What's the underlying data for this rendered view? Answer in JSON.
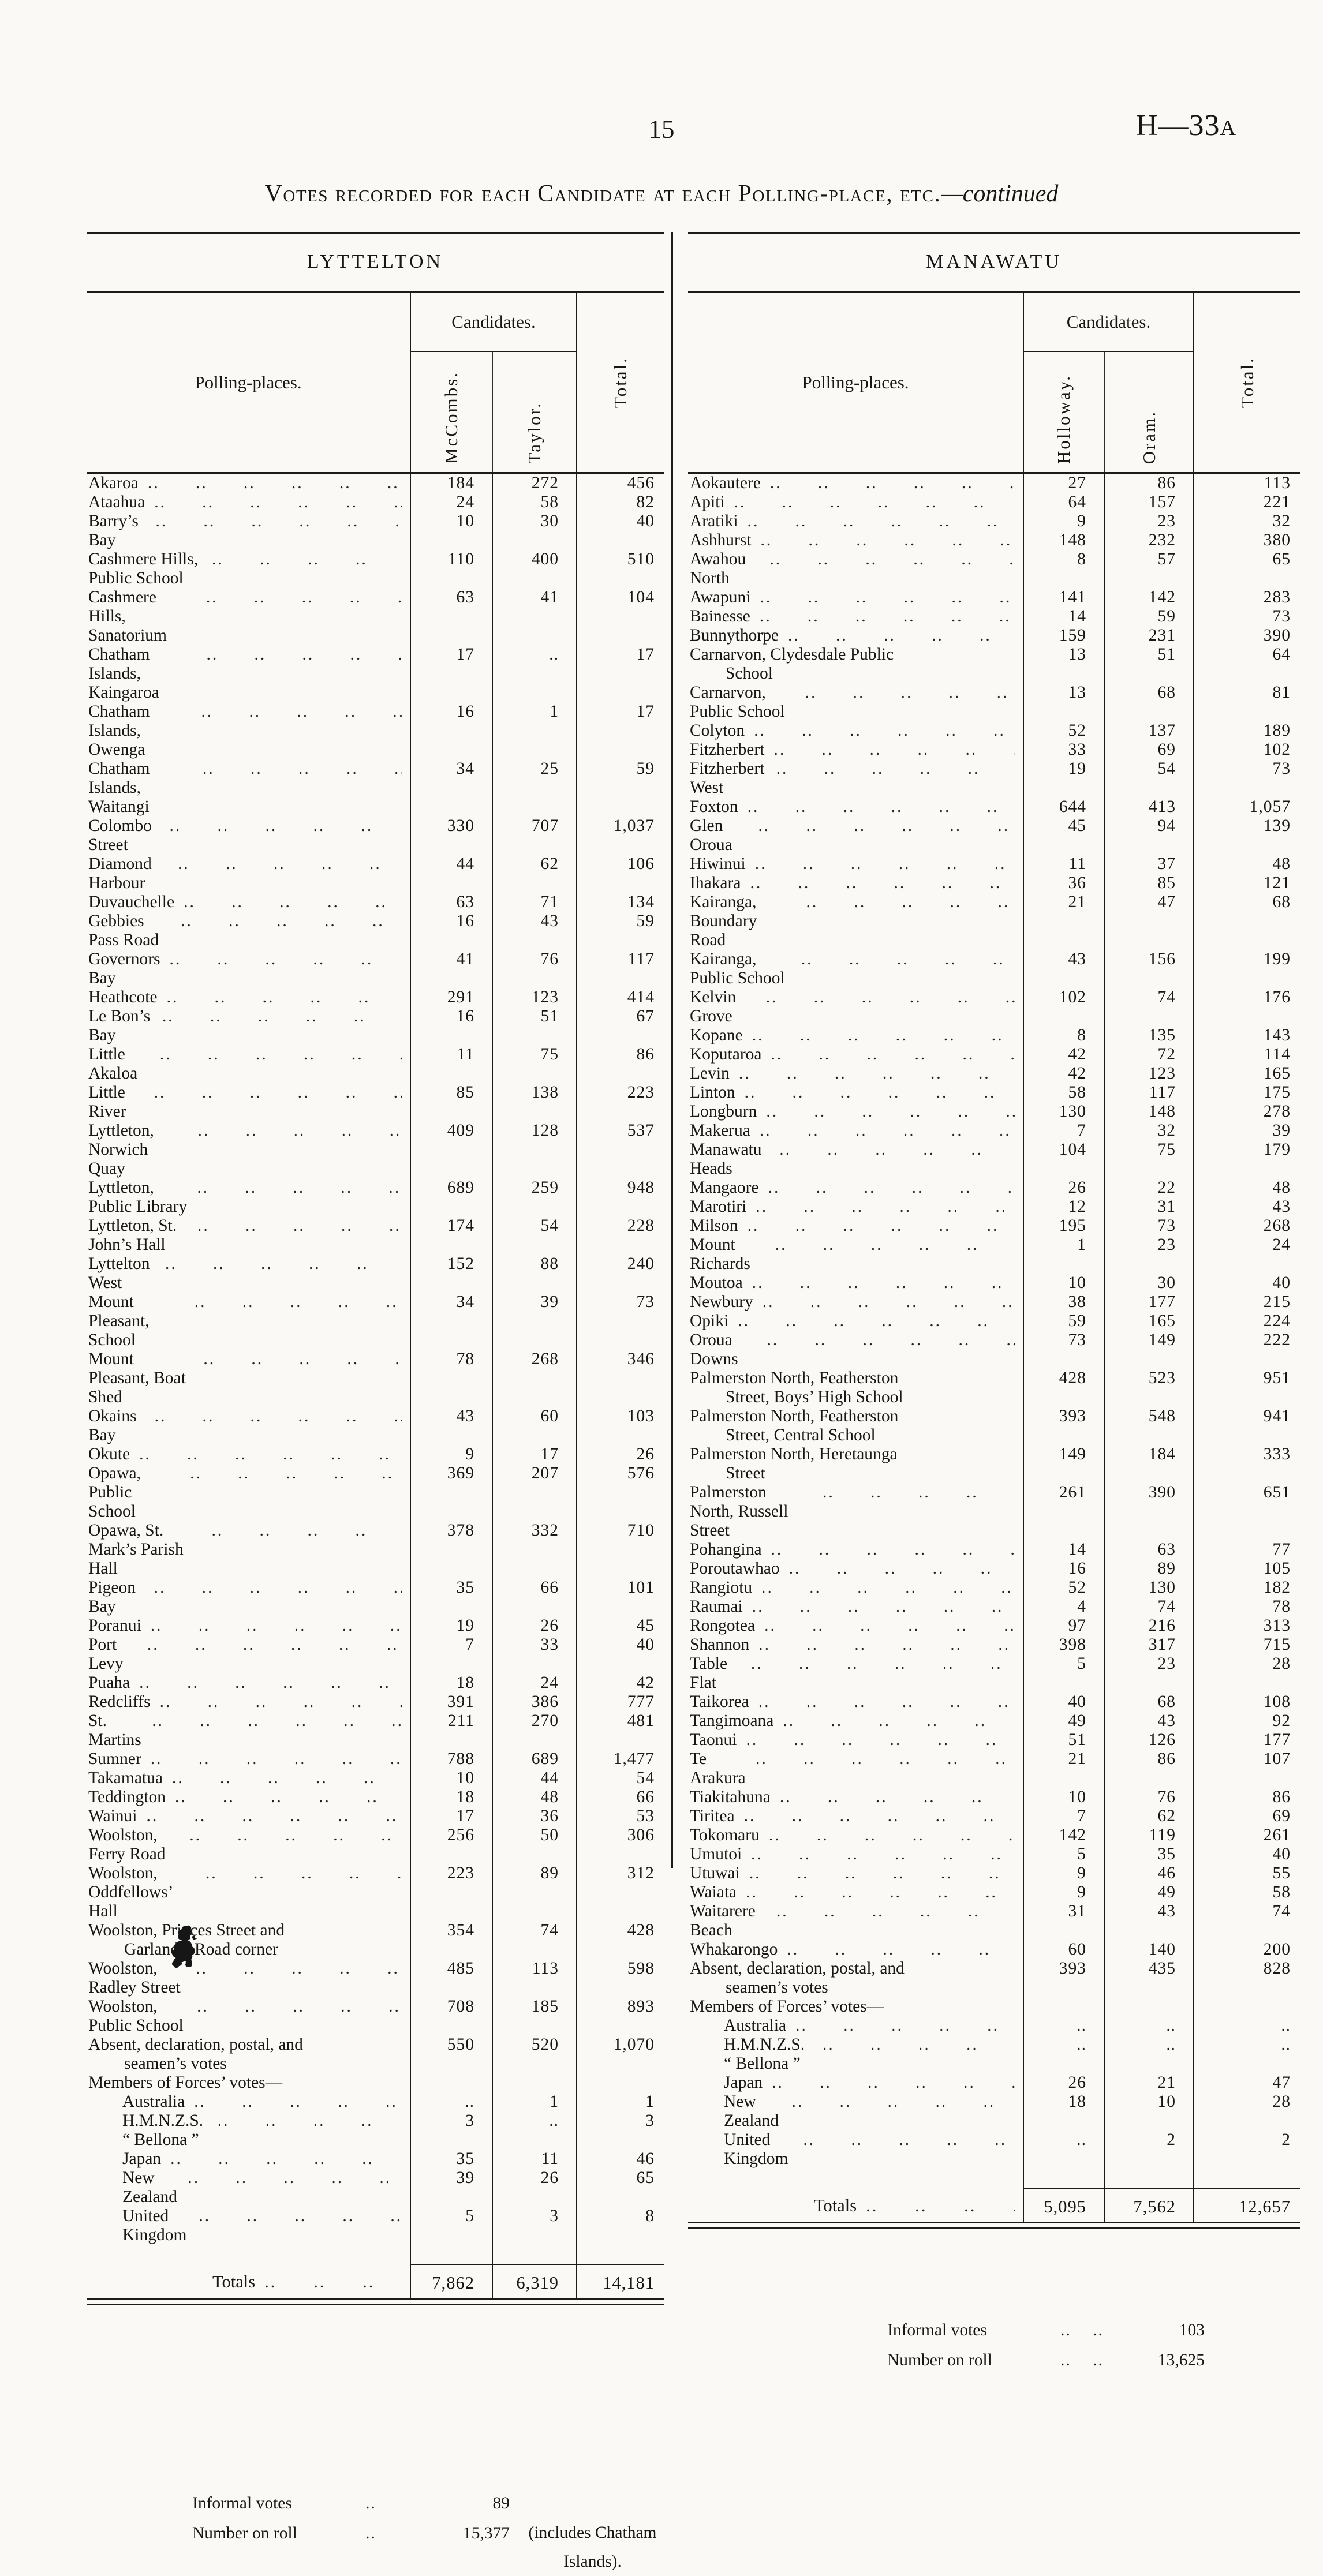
{
  "page": {
    "number": "15",
    "ref_main": "H—33",
    "ref_sub": "A"
  },
  "title": {
    "main": "Votes recorded for each Candidate at each Polling-place, etc.",
    "continued": "—continued"
  },
  "left": {
    "section": "LYTTELTON",
    "header": {
      "places": "Polling-places.",
      "candidates": "Candidates.",
      "cand1": "McCombs.",
      "cand2": "Taylor.",
      "total": "Total."
    },
    "rows": [
      {
        "n": "Akaroa",
        "a": "184",
        "b": "272",
        "t": "456"
      },
      {
        "n": "Ataahua",
        "a": "24",
        "b": "58",
        "t": "82"
      },
      {
        "n": "Barry’s Bay",
        "a": "10",
        "b": "30",
        "t": "40"
      },
      {
        "n": "Cashmere Hills, Public School",
        "a": "110",
        "b": "400",
        "t": "510"
      },
      {
        "n": "Cashmere Hills, Sanatorium",
        "a": "63",
        "b": "41",
        "t": "104"
      },
      {
        "n": "Chatham Islands, Kaingaroa",
        "a": "17",
        "b": "..",
        "t": "17"
      },
      {
        "n": "Chatham Islands, Owenga",
        "a": "16",
        "b": "1",
        "t": "17"
      },
      {
        "n": "Chatham Islands, Waitangi",
        "a": "34",
        "b": "25",
        "t": "59"
      },
      {
        "n": "Colombo Street",
        "a": "330",
        "b": "707",
        "t": "1,037"
      },
      {
        "n": "Diamond Harbour",
        "a": "44",
        "b": "62",
        "t": "106"
      },
      {
        "n": "Duvauchelle",
        "a": "63",
        "b": "71",
        "t": "134"
      },
      {
        "n": "Gebbies Pass Road",
        "a": "16",
        "b": "43",
        "t": "59"
      },
      {
        "n": "Governors Bay",
        "a": "41",
        "b": "76",
        "t": "117"
      },
      {
        "n": "Heathcote",
        "a": "291",
        "b": "123",
        "t": "414"
      },
      {
        "n": "Le Bon’s Bay",
        "a": "16",
        "b": "51",
        "t": "67"
      },
      {
        "n": "Little Akaloa",
        "a": "11",
        "b": "75",
        "t": "86"
      },
      {
        "n": "Little River",
        "a": "85",
        "b": "138",
        "t": "223"
      },
      {
        "n": "Lyttleton, Norwich Quay",
        "a": "409",
        "b": "128",
        "t": "537"
      },
      {
        "n": "Lyttleton, Public Library",
        "a": "689",
        "b": "259",
        "t": "948"
      },
      {
        "n": "Lyttleton, St. John’s Hall",
        "a": "174",
        "b": "54",
        "t": "228"
      },
      {
        "n": "Lyttelton West",
        "a": "152",
        "b": "88",
        "t": "240"
      },
      {
        "n": "Mount Pleasant, School",
        "a": "34",
        "b": "39",
        "t": "73"
      },
      {
        "n": "Mount Pleasant, Boat Shed",
        "a": "78",
        "b": "268",
        "t": "346"
      },
      {
        "n": "Okains Bay",
        "a": "43",
        "b": "60",
        "t": "103"
      },
      {
        "n": "Okute",
        "a": "9",
        "b": "17",
        "t": "26"
      },
      {
        "n": "Opawa, Public School",
        "a": "369",
        "b": "207",
        "t": "576"
      },
      {
        "n": "Opawa, St. Mark’s Parish Hall",
        "a": "378",
        "b": "332",
        "t": "710"
      },
      {
        "n": "Pigeon Bay",
        "a": "35",
        "b": "66",
        "t": "101"
      },
      {
        "n": "Poranui",
        "a": "19",
        "b": "26",
        "t": "45"
      },
      {
        "n": "Port Levy",
        "a": "7",
        "b": "33",
        "t": "40"
      },
      {
        "n": "Puaha",
        "a": "18",
        "b": "24",
        "t": "42"
      },
      {
        "n": "Redcliffs",
        "a": "391",
        "b": "386",
        "t": "777"
      },
      {
        "n": "St. Martins",
        "a": "211",
        "b": "270",
        "t": "481"
      },
      {
        "n": "Sumner",
        "a": "788",
        "b": "689",
        "t": "1,477"
      },
      {
        "n": "Takamatua",
        "a": "10",
        "b": "44",
        "t": "54"
      },
      {
        "n": "Teddington",
        "a": "18",
        "b": "48",
        "t": "66"
      },
      {
        "n": "Wainui",
        "a": "17",
        "b": "36",
        "t": "53"
      },
      {
        "n": "Woolston, Ferry Road",
        "a": "256",
        "b": "50",
        "t": "306"
      },
      {
        "n": "Woolston, Oddfellows’ Hall",
        "a": "223",
        "b": "89",
        "t": "312"
      },
      {
        "n": "Woolston, Princes Street and\nGarland’s Road corner",
        "a": "354",
        "b": "74",
        "t": "428",
        "f": "w"
      },
      {
        "n": "Woolston, Radley Street",
        "a": "485",
        "b": "113",
        "t": "598"
      },
      {
        "n": "Woolston, Public School",
        "a": "708",
        "b": "185",
        "t": "893"
      },
      {
        "n": "Absent, declaration, postal, and\nseamen’s votes",
        "a": "550",
        "b": "520",
        "t": "1,070",
        "f": "w"
      },
      {
        "n": "Members of Forces’ votes—",
        "a": "",
        "b": "",
        "t": "",
        "f": "g"
      },
      {
        "n": "Australia",
        "a": "..",
        "b": "1",
        "t": "1",
        "f": "i"
      },
      {
        "n": "H.M.N.Z.S. “ Bellona ”",
        "a": "3",
        "b": "..",
        "t": "3",
        "f": "i"
      },
      {
        "n": "Japan",
        "a": "35",
        "b": "11",
        "t": "46",
        "f": "i"
      },
      {
        "n": "New Zealand",
        "a": "39",
        "b": "26",
        "t": "65",
        "f": "i"
      },
      {
        "n": "United Kingdom",
        "a": "5",
        "b": "3",
        "t": "8",
        "f": "i"
      }
    ],
    "totals": {
      "label": "Totals",
      "a": "7,862",
      "b": "6,319",
      "t": "14,181"
    },
    "notes": [
      {
        "label": "Informal votes",
        "value": "89",
        "extra": ""
      },
      {
        "label": "Number on roll",
        "value": "15,377",
        "extra": "(includes Chatham Islands)."
      }
    ]
  },
  "right": {
    "section": "MANAWATU",
    "header": {
      "places": "Polling-places.",
      "candidates": "Candidates.",
      "cand1": "Holloway.",
      "cand2": "Oram.",
      "total": "Total."
    },
    "rows": [
      {
        "n": "Aokautere",
        "a": "27",
        "b": "86",
        "t": "113"
      },
      {
        "n": "Apiti",
        "a": "64",
        "b": "157",
        "t": "221"
      },
      {
        "n": "Aratiki",
        "a": "9",
        "b": "23",
        "t": "32"
      },
      {
        "n": "Ashhurst",
        "a": "148",
        "b": "232",
        "t": "380"
      },
      {
        "n": "Awahou North",
        "a": "8",
        "b": "57",
        "t": "65"
      },
      {
        "n": "Awapuni",
        "a": "141",
        "b": "142",
        "t": "283"
      },
      {
        "n": "Bainesse",
        "a": "14",
        "b": "59",
        "t": "73"
      },
      {
        "n": "Bunnythorpe",
        "a": "159",
        "b": "231",
        "t": "390"
      },
      {
        "n": "Carnarvon, Clydesdale Public\nSchool",
        "a": "13",
        "b": "51",
        "t": "64",
        "f": "w"
      },
      {
        "n": "Carnarvon, Public School",
        "a": "13",
        "b": "68",
        "t": "81"
      },
      {
        "n": "Colyton",
        "a": "52",
        "b": "137",
        "t": "189"
      },
      {
        "n": "Fitzherbert",
        "a": "33",
        "b": "69",
        "t": "102"
      },
      {
        "n": "Fitzherbert West",
        "a": "19",
        "b": "54",
        "t": "73"
      },
      {
        "n": "Foxton",
        "a": "644",
        "b": "413",
        "t": "1,057"
      },
      {
        "n": "Glen Oroua",
        "a": "45",
        "b": "94",
        "t": "139"
      },
      {
        "n": "Hiwinui",
        "a": "11",
        "b": "37",
        "t": "48"
      },
      {
        "n": "Ihakara",
        "a": "36",
        "b": "85",
        "t": "121"
      },
      {
        "n": "Kairanga, Boundary Road",
        "a": "21",
        "b": "47",
        "t": "68"
      },
      {
        "n": "Kairanga, Public School",
        "a": "43",
        "b": "156",
        "t": "199"
      },
      {
        "n": "Kelvin Grove",
        "a": "102",
        "b": "74",
        "t": "176"
      },
      {
        "n": "Kopane",
        "a": "8",
        "b": "135",
        "t": "143"
      },
      {
        "n": "Koputaroa",
        "a": "42",
        "b": "72",
        "t": "114"
      },
      {
        "n": "Levin",
        "a": "42",
        "b": "123",
        "t": "165"
      },
      {
        "n": "Linton",
        "a": "58",
        "b": "117",
        "t": "175"
      },
      {
        "n": "Longburn",
        "a": "130",
        "b": "148",
        "t": "278"
      },
      {
        "n": "Makerua",
        "a": "7",
        "b": "32",
        "t": "39"
      },
      {
        "n": "Manawatu Heads",
        "a": "104",
        "b": "75",
        "t": "179"
      },
      {
        "n": "Mangaore",
        "a": "26",
        "b": "22",
        "t": "48"
      },
      {
        "n": "Marotiri",
        "a": "12",
        "b": "31",
        "t": "43"
      },
      {
        "n": "Milson",
        "a": "195",
        "b": "73",
        "t": "268"
      },
      {
        "n": "Mount Richards",
        "a": "1",
        "b": "23",
        "t": "24"
      },
      {
        "n": "Moutoa",
        "a": "10",
        "b": "30",
        "t": "40"
      },
      {
        "n": "Newbury",
        "a": "38",
        "b": "177",
        "t": "215"
      },
      {
        "n": "Opiki",
        "a": "59",
        "b": "165",
        "t": "224"
      },
      {
        "n": "Oroua Downs",
        "a": "73",
        "b": "149",
        "t": "222"
      },
      {
        "n": "Palmerston North, Featherston\nStreet, Boys’ High School",
        "a": "428",
        "b": "523",
        "t": "951",
        "f": "w"
      },
      {
        "n": "Palmerston North, Featherston\nStreet, Central School",
        "a": "393",
        "b": "548",
        "t": "941",
        "f": "w"
      },
      {
        "n": "Palmerston North, Heretaunga\nStreet",
        "a": "149",
        "b": "184",
        "t": "333",
        "f": "w"
      },
      {
        "n": "Palmerston North, Russell Street",
        "a": "261",
        "b": "390",
        "t": "651"
      },
      {
        "n": "Pohangina",
        "a": "14",
        "b": "63",
        "t": "77"
      },
      {
        "n": "Poroutawhao",
        "a": "16",
        "b": "89",
        "t": "105"
      },
      {
        "n": "Rangiotu",
        "a": "52",
        "b": "130",
        "t": "182"
      },
      {
        "n": "Raumai",
        "a": "4",
        "b": "74",
        "t": "78"
      },
      {
        "n": "Rongotea",
        "a": "97",
        "b": "216",
        "t": "313"
      },
      {
        "n": "Shannon",
        "a": "398",
        "b": "317",
        "t": "715"
      },
      {
        "n": "Table Flat",
        "a": "5",
        "b": "23",
        "t": "28"
      },
      {
        "n": "Taikorea",
        "a": "40",
        "b": "68",
        "t": "108"
      },
      {
        "n": "Tangimoana",
        "a": "49",
        "b": "43",
        "t": "92"
      },
      {
        "n": "Taonui",
        "a": "51",
        "b": "126",
        "t": "177"
      },
      {
        "n": "Te Arakura",
        "a": "21",
        "b": "86",
        "t": "107"
      },
      {
        "n": "Tiakitahuna",
        "a": "10",
        "b": "76",
        "t": "86"
      },
      {
        "n": "Tiritea",
        "a": "7",
        "b": "62",
        "t": "69"
      },
      {
        "n": "Tokomaru",
        "a": "142",
        "b": "119",
        "t": "261"
      },
      {
        "n": "Umutoi",
        "a": "5",
        "b": "35",
        "t": "40"
      },
      {
        "n": "Utuwai",
        "a": "9",
        "b": "46",
        "t": "55"
      },
      {
        "n": "Waiata",
        "a": "9",
        "b": "49",
        "t": "58"
      },
      {
        "n": "Waitarere Beach",
        "a": "31",
        "b": "43",
        "t": "74"
      },
      {
        "n": "Whakarongo",
        "a": "60",
        "b": "140",
        "t": "200"
      },
      {
        "n": "Absent, declaration, postal, and\nseamen’s votes",
        "a": "393",
        "b": "435",
        "t": "828",
        "f": "w"
      },
      {
        "n": "Members of Forces’ votes—",
        "a": "",
        "b": "",
        "t": "",
        "f": "g"
      },
      {
        "n": "Australia",
        "a": "..",
        "b": "..",
        "t": "..",
        "f": "i"
      },
      {
        "n": "H.M.N.Z.S. “ Bellona ”",
        "a": "..",
        "b": "..",
        "t": "..",
        "f": "i"
      },
      {
        "n": "Japan",
        "a": "26",
        "b": "21",
        "t": "47",
        "f": "i"
      },
      {
        "n": "New Zealand",
        "a": "18",
        "b": "10",
        "t": "28",
        "f": "i"
      },
      {
        "n": "United Kingdom",
        "a": "..",
        "b": "2",
        "t": "2",
        "f": "i"
      }
    ],
    "totals": {
      "label": "Totals",
      "a": "5,095",
      "b": "7,562",
      "t": "12,657"
    },
    "notes": [
      {
        "label": "Informal votes",
        "value": "103",
        "extra": ""
      },
      {
        "label": "Number on roll",
        "value": "13,625",
        "extra": ""
      }
    ]
  },
  "colors": {
    "paper": "#faf9f5",
    "ink": "#171717"
  }
}
